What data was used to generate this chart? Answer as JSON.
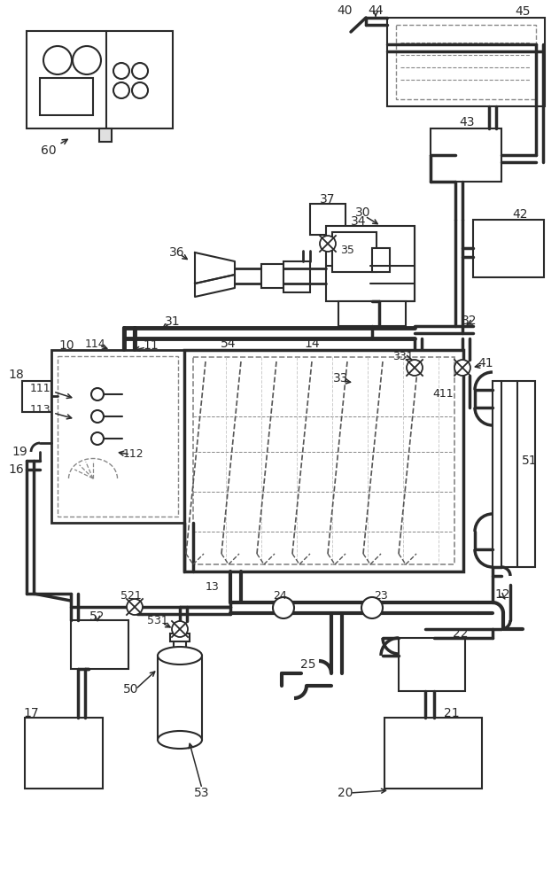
{
  "bg_color": "#ffffff",
  "lc": "#2a2a2a",
  "dc": "#888888",
  "lc2": "#aaaaaa",
  "fig_width": 6.31,
  "fig_height": 10.0
}
